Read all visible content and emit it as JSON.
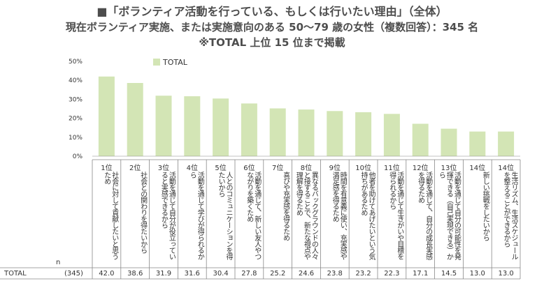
{
  "header": {
    "title_line1": "■「ボランティア活動を行っている、もしくは行いたい理由」（全体）",
    "title_line2": "現在ボランティア実施、または実施意向のある 50〜79 歳の女性（複数回答）：345 名",
    "title_line3": "※TOTAL 上位 15 位まで掲載"
  },
  "table": {
    "n_label": "n",
    "row_label": "TOTAL",
    "n_value": "(345)"
  },
  "chart_data": {
    "type": "bar",
    "series": [
      {
        "name": "TOTAL",
        "values": [
          42.0,
          38.6,
          31.9,
          31.6,
          30.4,
          27.8,
          25.2,
          24.6,
          23.8,
          23.2,
          22.3,
          17.1,
          14.5,
          13.0,
          13.0
        ]
      }
    ],
    "ranks": [
      "1位",
      "2位",
      "3位",
      "4位",
      "5位",
      "6位",
      "7位",
      "8位",
      "9位",
      "10位",
      "11位",
      "12位",
      "13位",
      "14位",
      "14位"
    ],
    "categories": [
      "社会に対して貢献したいと思うため",
      "社会との関わりを得たいから",
      "活動を通じて自分が役立っていると実感できるから",
      "活動を通じて学びが得られるから",
      "人とのコミュニケーションを得たいから",
      "活動を通じて、新しい友人やつながりを築くため",
      "喜びや充実感を得るため",
      "異なるバックグラウンドの人々と接することで、新たな視点や理解を得るため",
      "時間を有意義に使い、充実感や満足感を得るため",
      "他者を助けてあげたいという気持ちがあるため",
      "活動を通じて生きがいや目標を得られるから",
      "活動を通じて、自分の成長実感を得るため",
      "活動を通じて自分の可能性を発揮できる（自己実現できる）から",
      "新しい挑戦をしたいから",
      "生活リズム、生活スケジュールを整えることができるから"
    ],
    "value_labels": [
      "42.0",
      "38.6",
      "31.9",
      "31.6",
      "30.4",
      "27.8",
      "25.2",
      "24.6",
      "23.8",
      "23.2",
      "22.3",
      "17.1",
      "14.5",
      "13.0",
      "13.0"
    ],
    "y_ticks": [
      "0%",
      "10%",
      "20%",
      "30%",
      "40%",
      "50%"
    ],
    "ylim": [
      0,
      50
    ],
    "legend": "top-left",
    "grid": false,
    "bar_color": "#d3e5b5"
  }
}
